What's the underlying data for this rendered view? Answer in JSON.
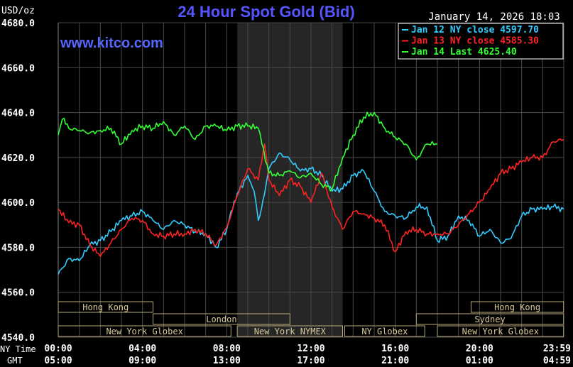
{
  "header": {
    "unit": "USD/oz",
    "title": "24 Hour Spot Gold (Bid)",
    "timestamp": "January 14, 2026 18:03",
    "watermark": "www.kitco.com"
  },
  "legend": [
    {
      "label": "Jan 12 NY close 4597.70",
      "color": "#33ccff"
    },
    {
      "label": "Jan 13 NY close 4585.30",
      "color": "#ff2222"
    },
    {
      "label": "Jan 14 Last 4625.40",
      "color": "#33ff33"
    }
  ],
  "time_axis": {
    "ny_label": "NY Time",
    "gmt_label": "GMT",
    "ny_ticks": [
      "00:00",
      "04:00",
      "08:00",
      "12:00",
      "16:00",
      "20:00",
      "23:59"
    ],
    "gmt_ticks": [
      "05:00",
      "09:00",
      "13:00",
      "17:00",
      "21:00",
      "01:00",
      "04:59"
    ]
  },
  "markets": [
    {
      "label": "Hong Kong",
      "row": 0,
      "start": 0,
      "end": 4.5
    },
    {
      "label": "Hong Kong",
      "row": 0,
      "start": 19.6,
      "end": 23.99
    },
    {
      "label": "London",
      "row": 1,
      "start": 4.5,
      "end": 11.0
    },
    {
      "label": "Sydney",
      "row": 1,
      "start": 17.0,
      "end": 23.99
    },
    {
      "label": "New York Globex",
      "row": 2,
      "start": 0,
      "end": 8.2
    },
    {
      "label": "New York NYMEX",
      "row": 2,
      "start": 8.5,
      "end": 13.5
    },
    {
      "label": "NY Globex",
      "row": 2,
      "start": 13.6,
      "end": 17.4
    },
    {
      "label": "New York Globex",
      "row": 2,
      "start": 18.0,
      "end": 23.99
    }
  ],
  "colors": {
    "background": "#000000",
    "grid": "#4a4a4a",
    "nymex_shade": "#262626",
    "title": "#5555ff",
    "watermark": "#5566ff",
    "axis_text": "#ffffff",
    "market_box": "#b8a878",
    "market_text": "#d8c898"
  },
  "chart_data": {
    "type": "line",
    "title": "24 Hour Spot Gold (Bid)",
    "xlabel": "NY Time",
    "ylabel": "USD/oz",
    "xlim": [
      0,
      24
    ],
    "ylim": [
      4540,
      4680
    ],
    "y_ticks": [
      4540.0,
      4560.0,
      4580.0,
      4600.0,
      4620.0,
      4640.0,
      4660.0,
      4680.0
    ],
    "grid": true,
    "legend_position": "top-right",
    "series": [
      {
        "name": "Jan 12 NY close 4597.70",
        "color": "#33ccff",
        "x": [
          0.0,
          0.5,
          1.0,
          1.5,
          2.0,
          2.5,
          3.0,
          3.5,
          4.0,
          4.5,
          5.0,
          5.5,
          6.0,
          6.5,
          7.0,
          7.5,
          8.0,
          8.2,
          8.5,
          9.0,
          9.3,
          9.5,
          9.8,
          10.0,
          10.5,
          11.0,
          11.5,
          12.0,
          12.5,
          13.0,
          13.5,
          14.0,
          14.5,
          15.0,
          15.5,
          16.0,
          16.5,
          17.0,
          17.3,
          17.5,
          18.0,
          18.5,
          19.0,
          19.5,
          20.0,
          20.5,
          21.0,
          21.5,
          22.0,
          22.5,
          23.0,
          23.5,
          23.99
        ],
        "values": [
          4568,
          4575,
          4574,
          4581,
          4583,
          4587,
          4592,
          4594,
          4596,
          4592,
          4588,
          4592,
          4590,
          4587,
          4586,
          4580,
          4588,
          4596,
          4604,
          4612,
          4605,
          4592,
          4604,
          4615,
          4622,
          4619,
          4614,
          4615,
          4612,
          4605,
          4606,
          4612,
          4614,
          4605,
          4596,
          4594,
          4593,
          4598,
          4598,
          4598,
          4583,
          4585,
          4594,
          4592,
          4585,
          4588,
          4582,
          4584,
          4594,
          4597,
          4597,
          4598,
          4597
        ]
      },
      {
        "name": "Jan 13 NY close 4585.30",
        "color": "#ff2222",
        "x": [
          0.0,
          0.5,
          1.0,
          1.5,
          2.0,
          2.5,
          3.0,
          3.5,
          4.0,
          4.5,
          5.0,
          5.5,
          6.0,
          6.5,
          7.0,
          7.5,
          8.0,
          8.5,
          9.0,
          9.5,
          9.8,
          10.0,
          10.5,
          11.0,
          11.5,
          12.0,
          12.5,
          13.0,
          13.5,
          14.0,
          14.5,
          15.0,
          15.5,
          16.0,
          16.5,
          17.0,
          17.5,
          18.0,
          18.5,
          19.0,
          19.5,
          20.0,
          20.5,
          21.0,
          21.5,
          22.0,
          22.5,
          23.0,
          23.5,
          23.99
        ],
        "values": [
          4597,
          4591,
          4590,
          4581,
          4576,
          4582,
          4588,
          4593,
          4592,
          4586,
          4585,
          4586,
          4586,
          4588,
          4586,
          4581,
          4589,
          4603,
          4615,
          4610,
          4626,
          4610,
          4603,
          4610,
          4607,
          4600,
          4613,
          4598,
          4588,
          4596,
          4595,
          4593,
          4590,
          4578,
          4587,
          4588,
          4586,
          4586,
          4586,
          4590,
          4595,
          4600,
          4606,
          4613,
          4615,
          4618,
          4620,
          4620,
          4627,
          4628
        ]
      },
      {
        "name": "Jan 14 Last 4625.40",
        "color": "#33ff33",
        "x": [
          0.0,
          0.2,
          0.5,
          1.0,
          1.5,
          2.0,
          2.5,
          3.0,
          3.5,
          4.0,
          4.5,
          5.0,
          5.5,
          6.0,
          6.5,
          7.0,
          7.5,
          8.0,
          8.5,
          9.0,
          9.5,
          10.0,
          10.5,
          11.0,
          11.5,
          12.0,
          12.5,
          13.0,
          13.5,
          14.0,
          14.5,
          15.0,
          15.5,
          16.0,
          16.5,
          17.0,
          17.5,
          18.0
        ],
        "values": [
          4630,
          4637,
          4633,
          4632,
          4631,
          4632,
          4633,
          4626,
          4632,
          4634,
          4633,
          4636,
          4630,
          4634,
          4628,
          4634,
          4634,
          4632,
          4634,
          4634,
          4633,
          4613,
          4612,
          4614,
          4611,
          4613,
          4608,
          4606,
          4620,
          4630,
          4638,
          4640,
          4633,
          4629,
          4626,
          4619,
          4626,
          4626
        ]
      }
    ]
  }
}
